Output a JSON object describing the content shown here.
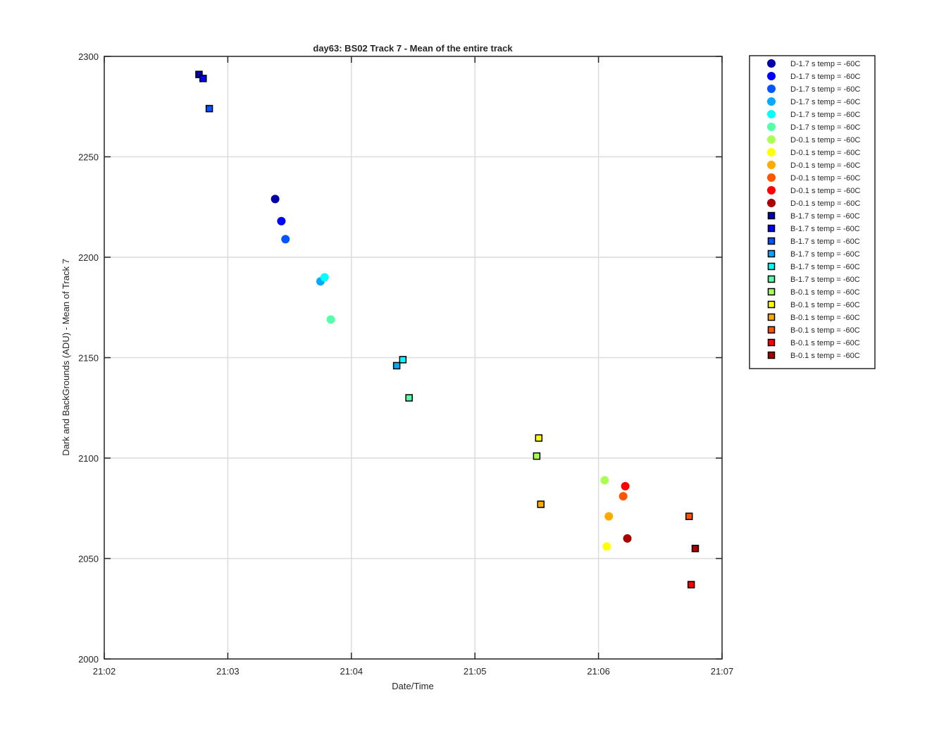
{
  "chart_data": {
    "type": "scatter",
    "title": "day63: BS02  Track 7 - Mean of the entire track",
    "xlabel": "Date/Time",
    "ylabel": "Dark and BackGrounds (ADU) - Mean of Track 7",
    "x_axis": {
      "min": "21:02",
      "max": "21:07",
      "ticks": [
        "21:02",
        "21:03",
        "21:04",
        "21:05",
        "21:06",
        "21:07"
      ]
    },
    "ylim": [
      2000,
      2300
    ],
    "yticks": [
      2000,
      2050,
      2100,
      2150,
      2200,
      2250,
      2300
    ],
    "grid": true,
    "legend_placement": "outside-right",
    "series": [
      {
        "name": "D-1.7 s temp = -60C",
        "marker": "circle",
        "color": "#0000AA",
        "points": [
          {
            "x": "21:03:23",
            "y": 2229
          }
        ]
      },
      {
        "name": "D-1.7 s temp = -60C",
        "marker": "circle",
        "color": "#0000FF",
        "points": [
          {
            "x": "21:03:26",
            "y": 2218
          }
        ]
      },
      {
        "name": "D-1.7 s temp = -60C",
        "marker": "circle",
        "color": "#0055FF",
        "points": [
          {
            "x": "21:03:28",
            "y": 2209
          }
        ]
      },
      {
        "name": "D-1.7 s temp = -60C",
        "marker": "circle",
        "color": "#00AAFF",
        "points": [
          {
            "x": "21:03:45",
            "y": 2188
          }
        ]
      },
      {
        "name": "D-1.7 s temp = -60C",
        "marker": "circle",
        "color": "#00FFFF",
        "points": [
          {
            "x": "21:03:47",
            "y": 2190
          }
        ]
      },
      {
        "name": "D-1.7 s temp = -60C",
        "marker": "circle",
        "color": "#55FFAA",
        "points": [
          {
            "x": "21:03:50",
            "y": 2169
          }
        ]
      },
      {
        "name": "D-0.1 s temp = -60C",
        "marker": "circle",
        "color": "#AAFF55",
        "points": [
          {
            "x": "21:06:03",
            "y": 2089
          }
        ]
      },
      {
        "name": "D-0.1 s temp = -60C",
        "marker": "circle",
        "color": "#FFFF00",
        "points": [
          {
            "x": "21:06:04",
            "y": 2056
          }
        ]
      },
      {
        "name": "D-0.1 s temp = -60C",
        "marker": "circle",
        "color": "#FFAA00",
        "points": [
          {
            "x": "21:06:05",
            "y": 2071
          }
        ]
      },
      {
        "name": "D-0.1 s temp = -60C",
        "marker": "circle",
        "color": "#FF5500",
        "points": [
          {
            "x": "21:06:12",
            "y": 2081
          }
        ]
      },
      {
        "name": "D-0.1 s temp = -60C",
        "marker": "circle",
        "color": "#FF0000",
        "points": [
          {
            "x": "21:06:13",
            "y": 2086
          }
        ]
      },
      {
        "name": "D-0.1 s temp = -60C",
        "marker": "circle",
        "color": "#AA0000",
        "points": [
          {
            "x": "21:06:14",
            "y": 2060
          }
        ]
      },
      {
        "name": "B-1.7 s temp = -60C",
        "marker": "square",
        "color": "#0000AA",
        "points": [
          {
            "x": "21:02:46",
            "y": 2291
          }
        ]
      },
      {
        "name": "B-1.7 s temp = -60C",
        "marker": "square",
        "color": "#0000FF",
        "points": [
          {
            "x": "21:02:48",
            "y": 2289
          }
        ]
      },
      {
        "name": "B-1.7 s temp = -60C",
        "marker": "square",
        "color": "#0055FF",
        "points": [
          {
            "x": "21:02:51",
            "y": 2274
          }
        ]
      },
      {
        "name": "B-1.7 s temp = -60C",
        "marker": "square",
        "color": "#00AAFF",
        "points": [
          {
            "x": "21:04:22",
            "y": 2146
          }
        ]
      },
      {
        "name": "B-1.7 s temp = -60C",
        "marker": "square",
        "color": "#00FFFF",
        "points": [
          {
            "x": "21:04:25",
            "y": 2149
          }
        ]
      },
      {
        "name": "B-1.7 s temp = -60C",
        "marker": "square",
        "color": "#55FFAA",
        "points": [
          {
            "x": "21:04:28",
            "y": 2130
          }
        ]
      },
      {
        "name": "B-0.1 s temp = -60C",
        "marker": "square",
        "color": "#AAFF55",
        "points": [
          {
            "x": "21:05:30",
            "y": 2101
          }
        ]
      },
      {
        "name": "B-0.1 s temp = -60C",
        "marker": "square",
        "color": "#FFFF00",
        "points": [
          {
            "x": "21:05:31",
            "y": 2110
          }
        ]
      },
      {
        "name": "B-0.1 s temp = -60C",
        "marker": "square",
        "color": "#FFAA00",
        "points": [
          {
            "x": "21:05:32",
            "y": 2077
          }
        ]
      },
      {
        "name": "B-0.1 s temp = -60C",
        "marker": "square",
        "color": "#FF5500",
        "points": [
          {
            "x": "21:06:44",
            "y": 2071
          }
        ]
      },
      {
        "name": "B-0.1 s temp = -60C",
        "marker": "square",
        "color": "#FF0000",
        "points": [
          {
            "x": "21:06:45",
            "y": 2037
          }
        ]
      },
      {
        "name": "B-0.1 s temp = -60C",
        "marker": "square",
        "color": "#AA0000",
        "points": [
          {
            "x": "21:06:47",
            "y": 2055
          }
        ]
      }
    ]
  }
}
